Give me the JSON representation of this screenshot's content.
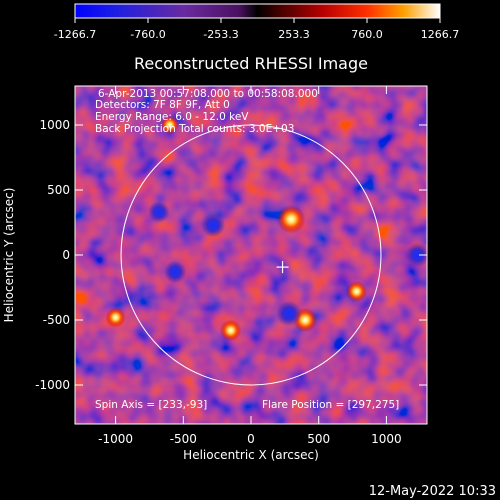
{
  "colorbar": {
    "ticks": [
      "-1266.7",
      "-760.0",
      "-253.3",
      "253.3",
      "760.0",
      "1266.7"
    ],
    "values": [
      -1266.7,
      -760.0,
      -253.3,
      253.3,
      760.0,
      1266.7
    ],
    "range": [
      -1266.7,
      1266.7
    ]
  },
  "chart_data": {
    "type": "heatmap",
    "title": "Reconstructed RHESSI Image",
    "xlabel": "Heliocentric X (arcsec)",
    "ylabel": "Heliocentric Y (arcsec)",
    "xlim": [
      -1300,
      1300
    ],
    "ylim": [
      -1300,
      1300
    ],
    "x_ticks": [
      -1000,
      -500,
      0,
      500,
      1000
    ],
    "y_ticks": [
      -1000,
      -500,
      0,
      500,
      1000
    ],
    "value_range": [
      -1266.7,
      1266.7
    ],
    "solar_limb_radius_arcsec": 960,
    "annotations": [
      "6-Apr-2013 00:57:08.000 to 00:58:08.000",
      "Detectors: 7F 8F 9F, Att 0",
      "Energy Range: 6.0 - 12.0 keV",
      "Back Projection    Total counts: 3.0E+03"
    ],
    "spin_axis_label": "Spin Axis = [233,-93]",
    "spin_axis": [
      233,
      -93
    ],
    "flare_position_label": "Flare Position = [297,275]",
    "flare_position": [
      297,
      275
    ],
    "sources": [
      {
        "x": 297,
        "y": 275,
        "value": 1266.7
      },
      {
        "x": 400,
        "y": -500,
        "value": 1000
      },
      {
        "x": -150,
        "y": -580,
        "value": 800
      },
      {
        "x": 780,
        "y": -280,
        "value": 760
      },
      {
        "x": -1000,
        "y": -480,
        "value": 700
      },
      {
        "x": -600,
        "y": 1000,
        "value": 600
      },
      {
        "x": -280,
        "y": 230,
        "value": -1000
      },
      {
        "x": -560,
        "y": -130,
        "value": -900
      },
      {
        "x": 280,
        "y": -450,
        "value": -1100
      },
      {
        "x": 1230,
        "y": 0,
        "value": -1000
      },
      {
        "x": -680,
        "y": 330,
        "value": -800
      }
    ]
  },
  "timestamp": "12-May-2022 10:33"
}
